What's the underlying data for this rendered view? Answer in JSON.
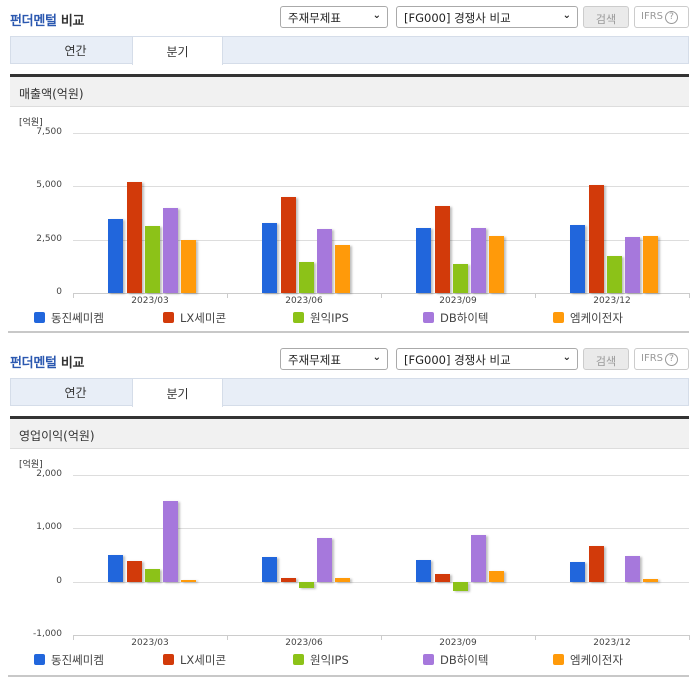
{
  "panels": [
    {
      "header": {
        "title_part1": "펀더멘털",
        "title_part2": " 비교",
        "select_type": "주재무제표",
        "select_group": "[FG000] 경쟁사 비교",
        "search_label": "검색",
        "ifrs_label": "IFRS",
        "help_glyph": "?"
      },
      "tabs": [
        {
          "label": "연간",
          "active": false
        },
        {
          "label": "분기",
          "active": true
        }
      ],
      "chart_title": "매출액(억원)",
      "unit": "[억원]",
      "y_ticks": [
        "7,500",
        "5,000",
        "2,500",
        "0"
      ],
      "x_labels": [
        "2023/03",
        "2023/06",
        "2023/09",
        "2023/12"
      ]
    },
    {
      "header": {
        "title_part1": "펀더멘털",
        "title_part2": " 비교",
        "select_type": "주재무제표",
        "select_group": "[FG000] 경쟁사 비교",
        "search_label": "검색",
        "ifrs_label": "IFRS",
        "help_glyph": "?"
      },
      "tabs": [
        {
          "label": "연간",
          "active": false
        },
        {
          "label": "분기",
          "active": true
        }
      ],
      "chart_title": "영업이익(억원)",
      "unit": "[억원]",
      "y_ticks": [
        "2,000",
        "1,000",
        "0",
        "-1,000"
      ],
      "x_labels": [
        "2023/03",
        "2023/06",
        "2023/09",
        "2023/12"
      ]
    }
  ],
  "legend": [
    {
      "name": "동진쎄미켐",
      "color": "#2166dc"
    },
    {
      "name": "LX세미콘",
      "color": "#d23a0a"
    },
    {
      "name": "원익IPS",
      "color": "#8cc218"
    },
    {
      "name": "DB하이텍",
      "color": "#a678dc"
    },
    {
      "name": "엠케이전자",
      "color": "#ff9a0a"
    }
  ],
  "chart_data": [
    {
      "type": "bar",
      "title": "매출액(억원)",
      "xlabel": "",
      "ylabel": "[억원]",
      "ylim": [
        0,
        7500
      ],
      "grid": true,
      "legend_position": "bottom",
      "categories": [
        "2023/03",
        "2023/06",
        "2023/09",
        "2023/12"
      ],
      "series": [
        {
          "name": "동진쎄미켐",
          "values": [
            3460,
            3290,
            3050,
            3210
          ]
        },
        {
          "name": "LX세미콘",
          "values": [
            5190,
            4500,
            4080,
            5050
          ]
        },
        {
          "name": "원익IPS",
          "values": [
            3130,
            1460,
            1340,
            1740
          ]
        },
        {
          "name": "DB하이텍",
          "values": [
            3970,
            2980,
            3050,
            2630
          ]
        },
        {
          "name": "엠케이전자",
          "values": [
            2480,
            2240,
            2660,
            2680
          ]
        }
      ]
    },
    {
      "type": "bar",
      "title": "영업이익(억원)",
      "xlabel": "",
      "ylabel": "[억원]",
      "ylim": [
        -1000,
        2000
      ],
      "grid": true,
      "legend_position": "bottom",
      "categories": [
        "2023/03",
        "2023/06",
        "2023/09",
        "2023/12"
      ],
      "series": [
        {
          "name": "동진쎄미켐",
          "values": [
            505,
            455,
            415,
            365
          ]
        },
        {
          "name": "LX세미콘",
          "values": [
            380,
            75,
            135,
            660
          ]
        },
        {
          "name": "원익IPS",
          "values": [
            245,
            -110,
            -180,
            0
          ]
        },
        {
          "name": "DB하이텍",
          "values": [
            1505,
            825,
            875,
            485
          ]
        },
        {
          "name": "엠케이전자",
          "values": [
            35,
            60,
            195,
            45
          ]
        }
      ]
    }
  ]
}
